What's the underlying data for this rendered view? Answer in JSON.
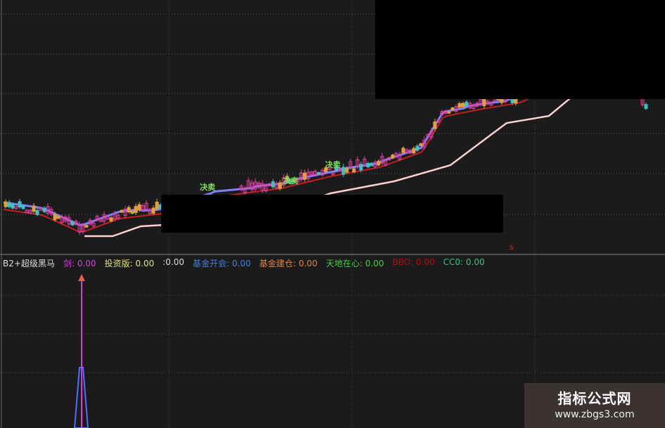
{
  "indicator": {
    "name": "B2+超级黑马",
    "items": [
      {
        "label": "剑:",
        "value": "0.00",
        "color": "#d040d0"
      },
      {
        "label": "投资版:",
        "value": "0.00",
        "color": "#e0e080"
      },
      {
        "label": ":",
        "value": "0.00",
        "color": "#dddddd"
      },
      {
        "label": "基金开会:",
        "value": "0.00",
        "color": "#4080e0"
      },
      {
        "label": "基金建仓:",
        "value": "0.00",
        "color": "#e08040"
      },
      {
        "label": "天地在心:",
        "value": "0.00",
        "color": "#40d040"
      },
      {
        "label": "BBO:",
        "value": "0.00",
        "color": "#b01010"
      },
      {
        "label": "CC0:",
        "value": "0.00",
        "color": "#40c080"
      }
    ]
  },
  "signals": [
    "决卖",
    "决卖",
    "决卖"
  ],
  "marker": "S",
  "watermark": {
    "title": "指标公式网",
    "url": "www.zbgs3.com"
  },
  "colors": {
    "background": "#1b1b1b",
    "up": "#e040a0",
    "down": "#40c0c0",
    "support": "#ffd0d0",
    "ma_red": "#c02020",
    "ma_blue": "#8080ff",
    "spike": "#d040d0"
  }
}
